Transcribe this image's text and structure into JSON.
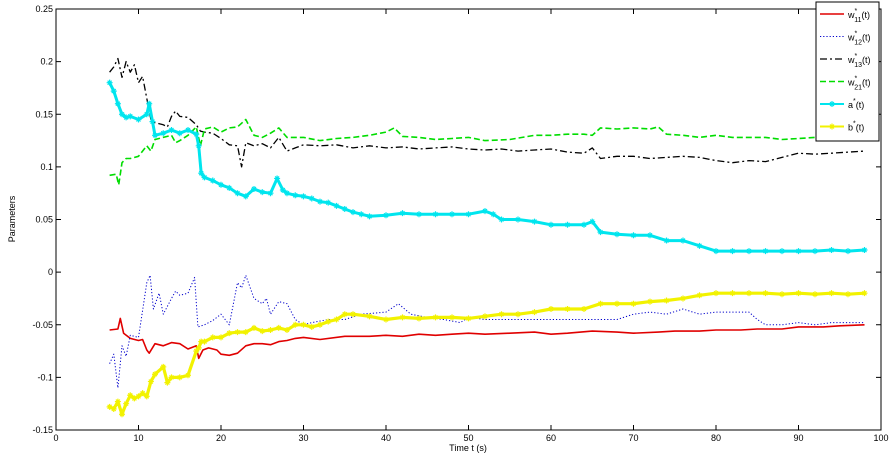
{
  "chart_data": {
    "type": "line",
    "xlabel": "Time t (s)",
    "ylabel": "Parameters",
    "xlim": [
      0,
      100
    ],
    "ylim": [
      -0.15,
      0.25
    ],
    "xticks": [
      0,
      10,
      20,
      30,
      40,
      50,
      60,
      70,
      80,
      90,
      100
    ],
    "xtick_labels": [
      "0",
      "10",
      "20",
      "30",
      "40",
      "50",
      "60",
      "70",
      "80",
      "90",
      "100"
    ],
    "yticks": [
      -0.15,
      -0.1,
      -0.05,
      0,
      0.05,
      0.1,
      0.15,
      0.2,
      0.25
    ],
    "ytick_labels": [
      "-0.15",
      "-0.1",
      "-0.05",
      "0",
      "0.05",
      "0.1",
      "0.15",
      "0.2",
      "0.25"
    ],
    "grid": false,
    "legend_position": "top-right",
    "series": [
      {
        "name": "w*11(t)",
        "legend": {
          "base": "w",
          "sup": "*",
          "sub": "11",
          "suffix": "(t)"
        },
        "color": "#e00000",
        "style": "solid",
        "width": 1.6,
        "x": [
          6.5,
          7.5,
          7.8,
          8.2,
          9,
          10,
          10.5,
          11,
          11.3,
          12,
          13,
          14,
          15,
          16,
          17,
          17.3,
          17.8,
          18.5,
          19.5,
          20,
          21,
          22,
          23,
          24,
          25,
          26,
          27,
          28,
          29,
          30,
          32,
          35,
          38,
          40,
          42,
          44,
          46,
          48,
          50,
          52,
          55,
          58,
          60,
          62,
          65,
          68,
          70,
          73,
          75,
          78,
          80,
          83,
          85,
          88,
          90,
          93,
          95,
          98
        ],
        "y": [
          -0.055,
          -0.054,
          -0.044,
          -0.058,
          -0.063,
          -0.065,
          -0.064,
          -0.074,
          -0.077,
          -0.068,
          -0.07,
          -0.067,
          -0.068,
          -0.073,
          -0.07,
          -0.082,
          -0.074,
          -0.072,
          -0.074,
          -0.078,
          -0.079,
          -0.077,
          -0.07,
          -0.068,
          -0.068,
          -0.069,
          -0.066,
          -0.065,
          -0.063,
          -0.062,
          -0.064,
          -0.061,
          -0.061,
          -0.06,
          -0.061,
          -0.059,
          -0.06,
          -0.059,
          -0.058,
          -0.059,
          -0.058,
          -0.057,
          -0.059,
          -0.058,
          -0.056,
          -0.057,
          -0.058,
          -0.057,
          -0.056,
          -0.056,
          -0.055,
          -0.055,
          -0.054,
          -0.054,
          -0.052,
          -0.052,
          -0.051,
          -0.05
        ]
      },
      {
        "name": "w*12(t)",
        "legend": {
          "base": "w",
          "sup": "*",
          "sub": "12",
          "suffix": "(t)"
        },
        "color": "#0000cc",
        "style": "dotted",
        "width": 1.0,
        "x": [
          6.5,
          7,
          7.5,
          8,
          8.5,
          9,
          10,
          11,
          11.4,
          11.8,
          12.5,
          13,
          14,
          14.5,
          15,
          16,
          16.8,
          17.2,
          18,
          19,
          20,
          21,
          22,
          22.5,
          23,
          24,
          25,
          25.5,
          26,
          27,
          28,
          29,
          30,
          31,
          33,
          35,
          37,
          40,
          41.5,
          43,
          45,
          47,
          49,
          50,
          52,
          55,
          58,
          60,
          62,
          65,
          68,
          70,
          72,
          74,
          76,
          78,
          80,
          82,
          84,
          85,
          86,
          88,
          90,
          92,
          94,
          96,
          98
        ],
        "y": [
          -0.087,
          -0.078,
          -0.11,
          -0.07,
          -0.08,
          -0.06,
          -0.062,
          -0.01,
          -0.003,
          -0.035,
          -0.02,
          -0.04,
          -0.025,
          -0.018,
          -0.022,
          -0.02,
          -0.005,
          -0.052,
          -0.05,
          -0.046,
          -0.04,
          -0.05,
          -0.01,
          -0.015,
          -0.003,
          -0.025,
          -0.03,
          -0.025,
          -0.04,
          -0.028,
          -0.03,
          -0.045,
          -0.05,
          -0.048,
          -0.045,
          -0.045,
          -0.04,
          -0.038,
          -0.03,
          -0.04,
          -0.043,
          -0.045,
          -0.048,
          -0.043,
          -0.045,
          -0.045,
          -0.045,
          -0.045,
          -0.045,
          -0.045,
          -0.045,
          -0.04,
          -0.038,
          -0.04,
          -0.035,
          -0.04,
          -0.038,
          -0.038,
          -0.038,
          -0.045,
          -0.05,
          -0.05,
          -0.048,
          -0.05,
          -0.048,
          -0.048,
          -0.048
        ]
      },
      {
        "name": "w*13(t)",
        "legend": {
          "base": "w",
          "sup": "*",
          "sub": "13",
          "suffix": "(t)"
        },
        "color": "#000000",
        "style": "dashdot",
        "width": 1.3,
        "x": [
          6.5,
          7,
          7.5,
          8,
          8.5,
          9,
          9.5,
          10,
          10.5,
          11,
          11.5,
          12,
          13,
          13.5,
          14,
          14.5,
          15,
          16,
          17,
          17.5,
          18,
          19,
          20,
          21,
          22,
          22.5,
          23,
          24,
          25,
          26,
          27,
          28,
          29,
          30,
          32,
          34,
          36,
          38,
          40,
          42,
          44,
          46,
          48,
          50,
          52,
          54,
          56,
          58,
          60,
          62,
          64,
          65,
          66,
          68,
          70,
          72,
          74,
          76,
          78,
          80,
          82,
          84,
          86,
          88,
          90,
          92,
          94,
          96,
          98
        ],
        "y": [
          0.19,
          0.195,
          0.203,
          0.185,
          0.2,
          0.19,
          0.197,
          0.18,
          0.186,
          0.165,
          0.145,
          0.142,
          0.14,
          0.138,
          0.148,
          0.153,
          0.148,
          0.147,
          0.14,
          0.134,
          0.133,
          0.132,
          0.127,
          0.121,
          0.12,
          0.1,
          0.123,
          0.12,
          0.122,
          0.118,
          0.128,
          0.115,
          0.118,
          0.121,
          0.12,
          0.121,
          0.118,
          0.12,
          0.118,
          0.119,
          0.117,
          0.118,
          0.119,
          0.117,
          0.116,
          0.117,
          0.115,
          0.116,
          0.117,
          0.114,
          0.113,
          0.118,
          0.108,
          0.11,
          0.11,
          0.108,
          0.109,
          0.11,
          0.109,
          0.106,
          0.104,
          0.106,
          0.105,
          0.109,
          0.113,
          0.112,
          0.113,
          0.114,
          0.115
        ]
      },
      {
        "name": "w*21(t)",
        "legend": {
          "base": "w",
          "sup": "*",
          "sub": "21",
          "suffix": "(t)"
        },
        "color": "#00dd00",
        "style": "dashed",
        "width": 1.6,
        "x": [
          6.5,
          7.3,
          7.6,
          8,
          8.5,
          9,
          10,
          11,
          11.5,
          12,
          13,
          14,
          14.5,
          15,
          16,
          17,
          17.5,
          18,
          19,
          20,
          21,
          22,
          23,
          24,
          25,
          26,
          27,
          28,
          30,
          32,
          34,
          36,
          38,
          40,
          41,
          42,
          44,
          46,
          48,
          50,
          52,
          55,
          58,
          60,
          62,
          64,
          65,
          66,
          68,
          70,
          72,
          73,
          74,
          76,
          78,
          80,
          82,
          84,
          86,
          88,
          90,
          92,
          94,
          96,
          98
        ],
        "y": [
          0.092,
          0.093,
          0.083,
          0.104,
          0.108,
          0.108,
          0.11,
          0.12,
          0.115,
          0.126,
          0.128,
          0.13,
          0.123,
          0.125,
          0.13,
          0.138,
          0.12,
          0.136,
          0.138,
          0.133,
          0.137,
          0.138,
          0.145,
          0.13,
          0.128,
          0.132,
          0.137,
          0.128,
          0.128,
          0.125,
          0.127,
          0.128,
          0.13,
          0.133,
          0.137,
          0.129,
          0.128,
          0.126,
          0.127,
          0.128,
          0.125,
          0.126,
          0.13,
          0.13,
          0.131,
          0.131,
          0.13,
          0.137,
          0.136,
          0.137,
          0.136,
          0.138,
          0.131,
          0.13,
          0.128,
          0.13,
          0.128,
          0.128,
          0.128,
          0.126,
          0.127,
          0.128,
          0.127,
          0.128,
          0.128
        ]
      },
      {
        "name": "a*(t)",
        "legend": {
          "base": "a",
          "sup": "*",
          "sub": "",
          "suffix": "(t)"
        },
        "color": "#00e5ee",
        "style": "solid-star",
        "width": 3.0,
        "x": [
          6.5,
          7,
          7.5,
          8,
          8.5,
          9,
          10,
          11,
          11.3,
          11.7,
          12,
          13,
          14,
          15,
          16,
          17,
          17.3,
          17.6,
          18,
          19,
          20,
          21,
          22,
          23,
          24,
          25,
          26,
          26.8,
          27.5,
          28,
          29,
          30,
          31,
          32,
          33,
          34,
          35,
          36,
          37,
          38,
          40,
          42,
          44,
          46,
          48,
          50,
          52,
          53,
          54,
          56,
          58,
          60,
          62,
          64,
          65,
          66,
          68,
          70,
          72,
          74,
          76,
          78,
          80,
          82,
          84,
          86,
          88,
          90,
          92,
          94,
          96,
          98
        ],
        "y": [
          0.18,
          0.172,
          0.16,
          0.15,
          0.147,
          0.148,
          0.145,
          0.15,
          0.16,
          0.143,
          0.13,
          0.132,
          0.135,
          0.132,
          0.135,
          0.131,
          0.12,
          0.094,
          0.09,
          0.087,
          0.083,
          0.08,
          0.075,
          0.072,
          0.079,
          0.076,
          0.075,
          0.089,
          0.078,
          0.075,
          0.073,
          0.072,
          0.07,
          0.067,
          0.066,
          0.063,
          0.06,
          0.057,
          0.055,
          0.053,
          0.054,
          0.056,
          0.055,
          0.055,
          0.055,
          0.055,
          0.058,
          0.055,
          0.05,
          0.05,
          0.048,
          0.045,
          0.045,
          0.045,
          0.048,
          0.038,
          0.036,
          0.035,
          0.035,
          0.03,
          0.03,
          0.025,
          0.02,
          0.02,
          0.02,
          0.02,
          0.02,
          0.02,
          0.02,
          0.021,
          0.02,
          0.021
        ]
      },
      {
        "name": "b*(t)",
        "legend": {
          "base": "b",
          "sup": "*",
          "sub": "",
          "suffix": "(t)"
        },
        "color": "#f2f200",
        "style": "solid-star",
        "width": 3.2,
        "x": [
          6.5,
          7,
          7.5,
          8,
          8.5,
          9,
          9.5,
          10,
          10.5,
          11,
          11.5,
          12,
          13,
          13.5,
          14,
          15,
          16,
          17,
          17.3,
          17.6,
          18,
          19,
          20,
          21,
          22,
          23,
          24,
          25,
          26,
          27,
          28,
          29,
          30,
          31,
          32,
          33,
          34,
          35,
          36,
          38,
          40,
          42,
          44,
          46,
          48,
          50,
          52,
          54,
          56,
          58,
          60,
          62,
          64,
          66,
          68,
          70,
          72,
          74,
          76,
          78,
          80,
          82,
          84,
          86,
          88,
          90,
          92,
          94,
          96,
          98
        ],
        "y": [
          -0.128,
          -0.13,
          -0.123,
          -0.135,
          -0.125,
          -0.117,
          -0.12,
          -0.118,
          -0.115,
          -0.118,
          -0.104,
          -0.097,
          -0.09,
          -0.105,
          -0.1,
          -0.1,
          -0.098,
          -0.075,
          -0.072,
          -0.066,
          -0.066,
          -0.062,
          -0.062,
          -0.058,
          -0.057,
          -0.057,
          -0.053,
          -0.056,
          -0.055,
          -0.053,
          -0.055,
          -0.05,
          -0.05,
          -0.052,
          -0.05,
          -0.047,
          -0.045,
          -0.04,
          -0.04,
          -0.042,
          -0.045,
          -0.043,
          -0.044,
          -0.043,
          -0.043,
          -0.044,
          -0.042,
          -0.04,
          -0.04,
          -0.038,
          -0.035,
          -0.035,
          -0.035,
          -0.03,
          -0.03,
          -0.03,
          -0.028,
          -0.027,
          -0.025,
          -0.022,
          -0.02,
          -0.02,
          -0.02,
          -0.02,
          -0.021,
          -0.02,
          -0.021,
          -0.02,
          -0.021,
          -0.02
        ]
      }
    ]
  }
}
